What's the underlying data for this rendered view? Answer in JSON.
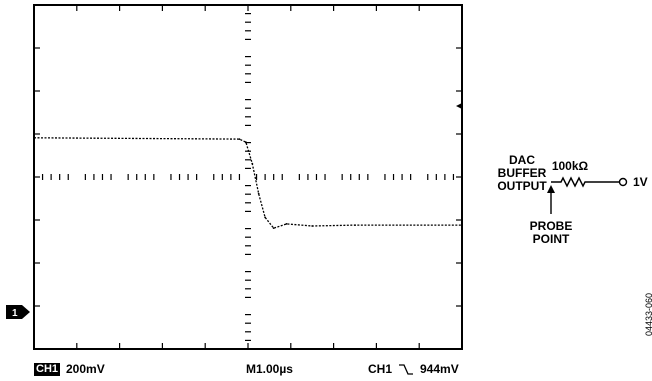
{
  "chart_data": {
    "type": "line",
    "title": "",
    "xlabel": "",
    "ylabel": "",
    "x_unit_per_div": "1.00µs",
    "y_unit_per_div": "200mV",
    "divisions": {
      "x": 10,
      "y": 8
    },
    "grid": false,
    "series": [
      {
        "x": [
          -5.0,
          -0.2,
          -0.05,
          0.1,
          0.25,
          0.4,
          0.6,
          0.9,
          1.5,
          2.5,
          5.0
        ],
        "values": [
          4.05,
          4.02,
          3.95,
          3.45,
          2.75,
          2.2,
          1.95,
          2.05,
          2.0,
          2.02,
          2.02
        ]
      }
    ]
  },
  "scope": {
    "channel_marker": "1",
    "ch_badge": "CH1",
    "ch_scale": "200mV",
    "timebase": "M1.00µs",
    "trigger_label": "CH1",
    "trigger_slope_icon": "falling-edge-icon",
    "trigger_level": "944mV"
  },
  "schematic": {
    "source_label_line1": "DAC",
    "source_label_line2": "BUFFER",
    "source_label_line3": "OUTPUT",
    "resistor_value": "100kΩ",
    "load_voltage": "1V",
    "probe_line1": "PROBE",
    "probe_line2": "POINT"
  },
  "doc_id": "04433-060"
}
